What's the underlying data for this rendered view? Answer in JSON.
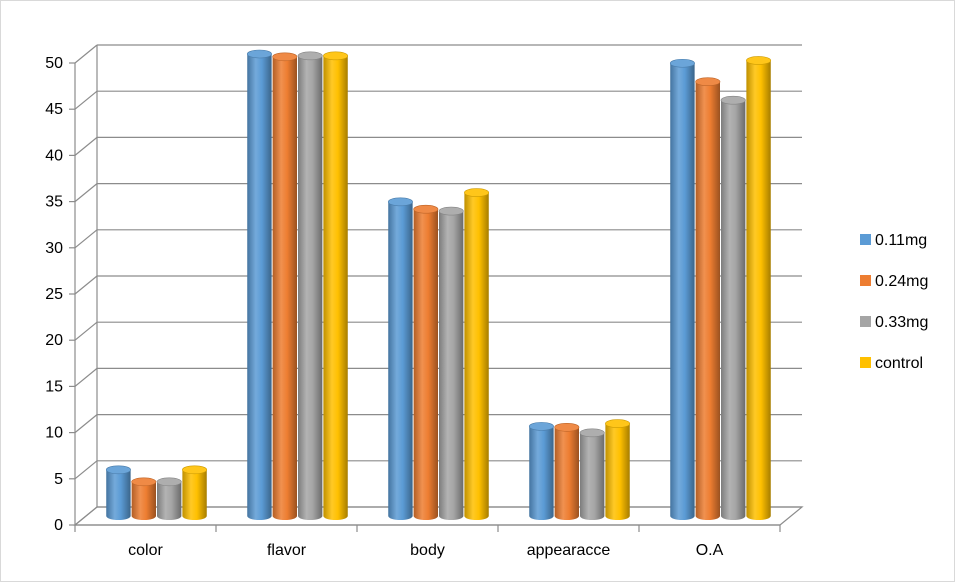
{
  "chart_data": {
    "type": "bar",
    "title": "",
    "xlabel": "",
    "ylabel": "",
    "categories": [
      "color",
      "flavor",
      "body",
      "appearacce",
      "O.A"
    ],
    "series": [
      {
        "name": "0.11mg",
        "color": "#5B9BD5",
        "values": [
          5,
          50,
          34,
          9.7,
          49
        ]
      },
      {
        "name": "0.24mg",
        "color": "#ED7D31",
        "values": [
          3.7,
          49.7,
          33.2,
          9.6,
          47
        ]
      },
      {
        "name": "0.33mg",
        "color": "#A5A5A5",
        "values": [
          3.7,
          49.8,
          33,
          9,
          45
        ]
      },
      {
        "name": "control",
        "color": "#FFC000",
        "values": [
          5,
          49.8,
          35,
          10,
          49.3
        ]
      }
    ],
    "ylim": [
      0,
      50
    ],
    "yticks": [
      0,
      5,
      10,
      15,
      20,
      25,
      30,
      35,
      40,
      45,
      50
    ],
    "grid": true,
    "legend_position": "right",
    "style": "3d-cylinder"
  }
}
